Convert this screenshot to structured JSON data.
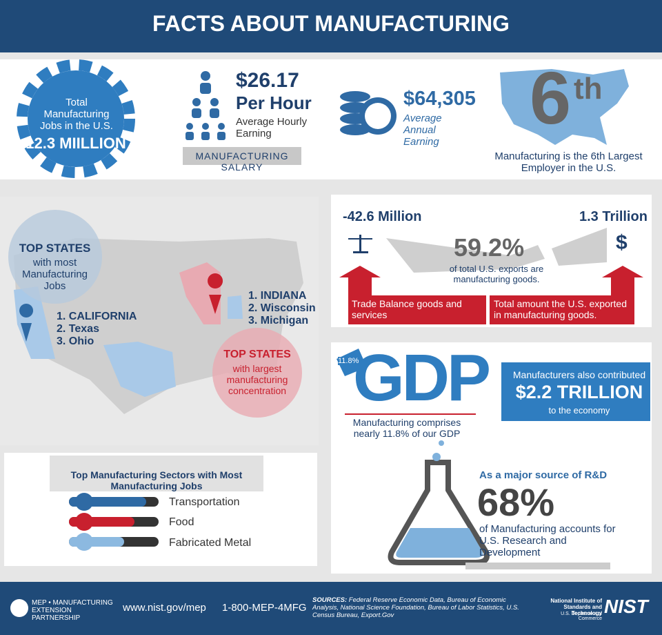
{
  "header": {
    "title": "FACTS ABOUT MANUFACTURING"
  },
  "jobs": {
    "label": "Total Manufacturing Jobs in the U.S.",
    "value": "12.3 MIILLION"
  },
  "hourly": {
    "amount": "$26.17",
    "unit": "Per Hour",
    "label": "Average Hourly Earning",
    "tag": "MANUFACTURING SALARY"
  },
  "annual": {
    "amount": "$64,305",
    "label": "Average Annual Earning"
  },
  "rank": {
    "number": "6",
    "suffix": "th",
    "label": "Manufacturing is the 6th Largest Employer in the U.S."
  },
  "states_jobs": {
    "heading": "TOP STATES",
    "subheading": "with most Manufacturing Jobs",
    "list": [
      "1. CALIFORNIA",
      "2. Texas",
      "3. Ohio"
    ]
  },
  "states_concentration": {
    "heading": "TOP STATES",
    "subheading": "with largest manufacturing concentration",
    "list": [
      "1. INDIANA",
      "2. Wisconsin",
      "3. Michigan"
    ]
  },
  "trade": {
    "balance": "-42.6 Million",
    "exports": "1.3 Trillion",
    "share": "59.2%",
    "share_label": "of total U.S. exports are manufacturing goods.",
    "balance_label": "Trade Balance goods and services",
    "exports_label": "Total amount the U.S. exported in manufacturing goods.",
    "currency_icon": "$"
  },
  "gdp": {
    "share": "11.8%",
    "word": "GDP",
    "label": "Manufacturing comprises nearly 11.8% of our GDP",
    "contrib_intro": "Manufacturers also contributed",
    "contrib_value": "$2.2 TRILLION",
    "contrib_outro": "to the economy"
  },
  "sectors": {
    "title": "Top Manufacturing Sectors with Most Manufacturing Jobs",
    "items": [
      "Transportation",
      "Food",
      "Fabricated Metal"
    ]
  },
  "research": {
    "heading": "As a major source of R&D",
    "share": "68%",
    "label": "of Manufacturing accounts for U.S. Research and Development"
  },
  "footer": {
    "org": "MEP • MANUFACTURING EXTENSION PARTNERSHIP",
    "url": "www.nist.gov/mep",
    "phone": "1-800-MEP-4MFG",
    "sources_label": "SOURCES:",
    "sources": "Federal Reserve Economic Data, Bureau of Economic Analysis, National Science Foundation, Bureau of Labor Statistics, U.S. Census Bureau, Export.Gov",
    "agency": "National Institute of Standards and Technology",
    "department": "U.S. Department of Commerce",
    "logo": "NIST"
  }
}
